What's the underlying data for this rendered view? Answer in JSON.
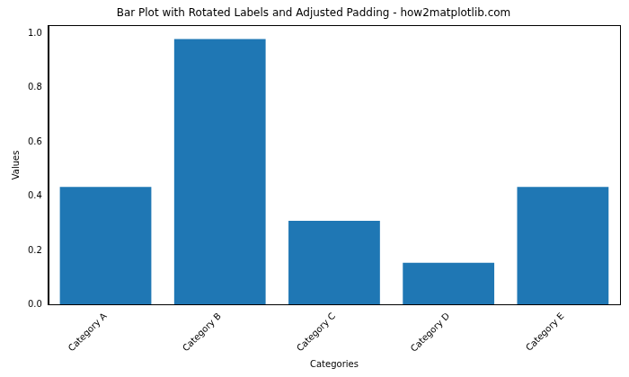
{
  "chart_data": {
    "type": "bar",
    "title": "Bar Plot with Rotated Labels and Adjusted Padding - how2matplotlib.com",
    "x_label": "Categories",
    "y_label": "Values",
    "categories": [
      "Category A",
      "Category B",
      "Category C",
      "Category D",
      "Category E"
    ],
    "values": [
      0.435,
      0.98,
      0.31,
      0.155,
      0.435
    ],
    "color": "#1f77b4",
    "ylim": [
      0,
      1.03
    ],
    "yticks": [
      {
        "value": 0,
        "label": "0.0"
      },
      0.2,
      0.4,
      0.6,
      0.8,
      {
        "value": 1,
        "label": "1.0"
      }
    ],
    "grid": false
  }
}
